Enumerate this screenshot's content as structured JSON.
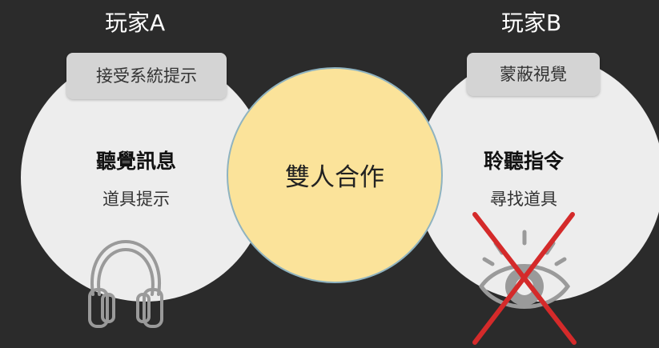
{
  "player_a": {
    "label": "玩家A",
    "tag": "接受系統提示",
    "title": "聽覺訊息",
    "subtitle": "道具提示",
    "icon": "headphones-icon"
  },
  "player_b": {
    "label": "玩家B",
    "tag": "蒙蔽視覺",
    "title": "聆聽指令",
    "subtitle": "尋找道具",
    "icon": "crossed-eye-icon"
  },
  "center": {
    "text": "雙人合作"
  },
  "colors": {
    "background": "#2b2b2b",
    "side_circle": "#ededed",
    "center_circle": "#fbe39a",
    "tag": "#d4d4d4",
    "cross": "#d42a2a"
  }
}
